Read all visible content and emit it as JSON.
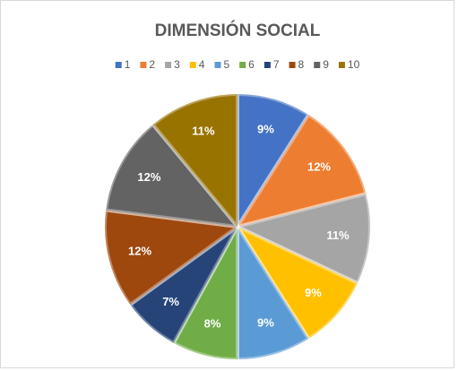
{
  "chart_data": {
    "type": "pie",
    "title": "DIMENSIÓN SOCIAL",
    "categories": [
      "1",
      "2",
      "3",
      "4",
      "5",
      "6",
      "7",
      "8",
      "9",
      "10"
    ],
    "values": [
      9,
      12,
      11,
      9,
      9,
      8,
      7,
      12,
      12,
      11
    ],
    "value_labels": [
      "9%",
      "12%",
      "11%",
      "9%",
      "9%",
      "8%",
      "7%",
      "12%",
      "12%",
      "11%"
    ],
    "colors": [
      "#4472c4",
      "#ed7d31",
      "#a5a5a5",
      "#ffc000",
      "#5b9bd5",
      "#70ad47",
      "#264478",
      "#9e480e",
      "#636363",
      "#997300"
    ],
    "legend": "top"
  }
}
